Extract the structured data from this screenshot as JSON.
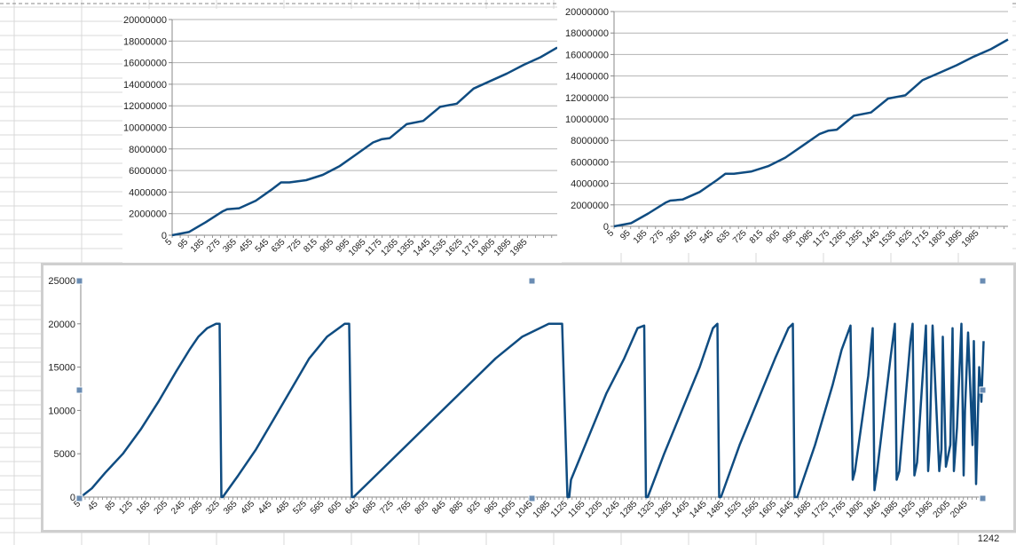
{
  "sheet": {
    "corner_label": "1242",
    "grid_color": "#d9d9d9",
    "line_color": "#0f4c81",
    "handle_color": "#6a8cb3"
  },
  "chart_data": [
    {
      "type": "line",
      "title": "",
      "xlabel": "",
      "ylabel": "",
      "ylim": [
        0,
        20000000
      ],
      "yticks": [
        "20000000",
        "18000000",
        "16000000",
        "14000000",
        "12000000",
        "10000000",
        "8000000",
        "6000000",
        "4000000",
        "2000000",
        "0"
      ],
      "xticks": [
        "5",
        "95",
        "185",
        "275",
        "365",
        "455",
        "545",
        "635",
        "725",
        "815",
        "905",
        "995",
        "1085",
        "1175",
        "1265",
        "1355",
        "1445",
        "1535",
        "1625",
        "1715",
        "1805",
        "1895",
        "1985"
      ],
      "grid": true,
      "x": [
        5,
        95,
        185,
        275,
        300,
        365,
        455,
        545,
        590,
        635,
        725,
        815,
        905,
        995,
        1085,
        1130,
        1175,
        1265,
        1355,
        1445,
        1535,
        1625,
        1715,
        1805,
        1895,
        1985,
        2075
      ],
      "y": [
        0,
        300000,
        1200000,
        2200000,
        2400000,
        2500000,
        3200000,
        4300000,
        4900000,
        4900000,
        5100000,
        5600000,
        6400000,
        7500000,
        8600000,
        8900000,
        9000000,
        10300000,
        10600000,
        11900000,
        12200000,
        13600000,
        14300000,
        15000000,
        15800000,
        16500000,
        17400000
      ]
    },
    {
      "type": "line",
      "title": "",
      "xlabel": "",
      "ylabel": "",
      "ylim": [
        0,
        20000000
      ],
      "yticks": [
        "20000000",
        "18000000",
        "16000000",
        "14000000",
        "12000000",
        "10000000",
        "8000000",
        "6000000",
        "4000000",
        "2000000",
        "0"
      ],
      "xticks": [
        "5",
        "95",
        "185",
        "275",
        "365",
        "455",
        "545",
        "635",
        "725",
        "815",
        "905",
        "995",
        "1085",
        "1175",
        "1265",
        "1355",
        "1445",
        "1535",
        "1625",
        "1715",
        "1805",
        "1895",
        "1985"
      ],
      "grid": true,
      "x": [
        5,
        95,
        185,
        275,
        300,
        365,
        455,
        545,
        590,
        635,
        725,
        815,
        905,
        995,
        1085,
        1130,
        1175,
        1265,
        1355,
        1445,
        1535,
        1625,
        1715,
        1805,
        1895,
        1985,
        2075
      ],
      "y": [
        0,
        300000,
        1200000,
        2200000,
        2400000,
        2500000,
        3200000,
        4300000,
        4900000,
        4900000,
        5100000,
        5600000,
        6400000,
        7500000,
        8600000,
        8900000,
        9000000,
        10300000,
        10600000,
        11900000,
        12200000,
        13600000,
        14300000,
        15000000,
        15800000,
        16500000,
        17400000
      ]
    },
    {
      "type": "line",
      "title": "",
      "xlabel": "",
      "ylabel": "",
      "ylim": [
        0,
        25000
      ],
      "yticks": [
        "25000",
        "20000",
        "15000",
        "10000",
        "5000",
        "0"
      ],
      "xticks": [
        "5",
        "45",
        "85",
        "125",
        "165",
        "205",
        "245",
        "285",
        "325",
        "365",
        "405",
        "445",
        "485",
        "525",
        "565",
        "605",
        "645",
        "685",
        "725",
        "765",
        "805",
        "845",
        "885",
        "925",
        "965",
        "1005",
        "1045",
        "1085",
        "1125",
        "1165",
        "1205",
        "1245",
        "1285",
        "1325",
        "1365",
        "1405",
        "1445",
        "1485",
        "1525",
        "1565",
        "1605",
        "1645",
        "1685",
        "1725",
        "1765",
        "1805",
        "1845",
        "1885",
        "1925",
        "1965",
        "2005",
        "2045"
      ],
      "grid": false,
      "x": [
        5,
        30,
        60,
        100,
        140,
        180,
        220,
        250,
        270,
        290,
        310,
        318,
        322,
        325,
        360,
        400,
        440,
        480,
        520,
        560,
        600,
        610,
        616,
        620,
        700,
        780,
        860,
        940,
        1000,
        1060,
        1090,
        1102,
        1106,
        1110,
        1150,
        1190,
        1230,
        1260,
        1275,
        1279,
        1283,
        1320,
        1360,
        1400,
        1430,
        1440,
        1444,
        1448,
        1490,
        1530,
        1570,
        1600,
        1610,
        1614,
        1620,
        1660,
        1700,
        1720,
        1740,
        1745,
        1750,
        1780,
        1790,
        1794,
        1800,
        1830,
        1840,
        1844,
        1850,
        1875,
        1880,
        1884,
        1890,
        1910,
        1915,
        1918,
        1925,
        1940,
        1945,
        1948,
        1955,
        1965,
        1970,
        1973,
        1980,
        1990,
        1995,
        1998,
        2005,
        2015,
        2018,
        2023,
        2030,
        2035,
        2040
      ],
      "y": [
        0,
        1000,
        2800,
        5000,
        7800,
        11000,
        14500,
        17000,
        18500,
        19500,
        20000,
        20000,
        0,
        0,
        2500,
        5500,
        9000,
        12500,
        16000,
        18500,
        20000,
        20000,
        0,
        0,
        4000,
        8000,
        12000,
        16000,
        18500,
        20000,
        20000,
        0,
        0,
        2000,
        7000,
        12000,
        16000,
        19500,
        19800,
        0,
        0,
        5000,
        10000,
        15000,
        19500,
        20000,
        0,
        0,
        6000,
        11000,
        16000,
        19500,
        20000,
        0,
        0,
        6000,
        13000,
        17000,
        19800,
        2000,
        3000,
        14000,
        19500,
        800,
        3000,
        16000,
        20000,
        2000,
        3000,
        18000,
        20000,
        2500,
        4000,
        19800,
        3000,
        5500,
        19800,
        3000,
        5500,
        18500,
        3500,
        6000,
        19500,
        3000,
        8000,
        20000,
        2500,
        10000,
        19000,
        6000,
        18000,
        1500,
        15000,
        11000,
        18000
      ]
    }
  ]
}
